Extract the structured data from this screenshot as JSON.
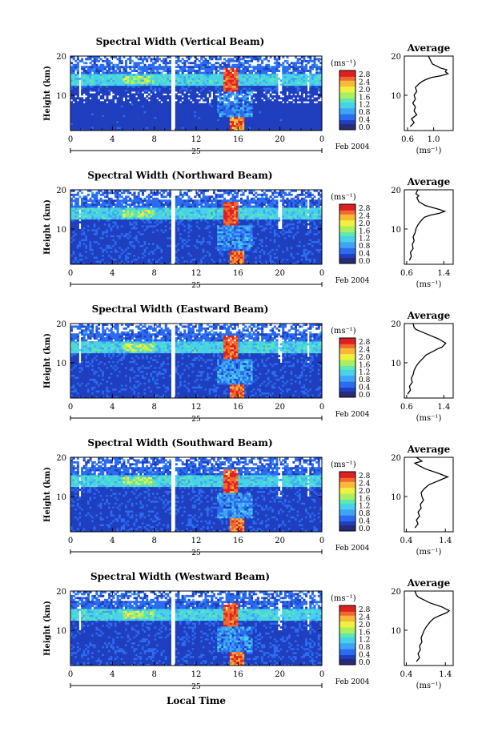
{
  "xlabel": "Local Time",
  "x_ticks": [
    "0",
    "4",
    "8",
    "12",
    "16",
    "20",
    "0"
  ],
  "day_label": "25",
  "month_label": "Feb 2004",
  "ylabel": "Height (km)",
  "y_ticks": [
    "20",
    "10"
  ],
  "colorbar_unit": "(ms⁻¹)",
  "colorbar_ticks": [
    "2.8",
    "2.4",
    "2.0",
    "1.6",
    "1.2",
    "0.8",
    "0.4",
    "0.0"
  ],
  "avg_title": "Average",
  "avg_xlabel": "(ms⁻¹)",
  "colors": {
    "background": "#ffffff",
    "line": "#000000",
    "colormap": [
      "#2a2a7a",
      "#1f3fbf",
      "#2b6cf0",
      "#3fa4f5",
      "#48d2e8",
      "#5fe8b0",
      "#a8f060",
      "#f0f040",
      "#f8b838",
      "#f06a30",
      "#e02020"
    ]
  },
  "chart_data": [
    {
      "type": "heatmap",
      "title": "Spectral Width (Vertical Beam)",
      "xlim": [
        0,
        24
      ],
      "ylim": [
        1,
        20
      ],
      "clim": [
        0.0,
        3.0
      ],
      "avg_profile": {
        "type": "line",
        "title": "Average",
        "x_ticks": [
          "0.6",
          "1.0"
        ],
        "xlim": [
          0.55,
          1.3
        ],
        "y_ticks": [
          "20",
          "10"
        ],
        "ylim": [
          1,
          20
        ],
        "x": [
          0.64,
          0.7,
          0.66,
          0.74,
          0.7,
          0.72,
          0.68,
          0.72,
          0.7,
          0.74,
          0.72,
          0.78,
          0.82,
          0.88,
          0.96,
          1.12,
          1.22,
          1.18,
          1.2,
          1.1,
          0.98,
          0.95,
          0.92
        ],
        "y": [
          2,
          3,
          4,
          5,
          6,
          7,
          8,
          9,
          10,
          11,
          12,
          13,
          13.5,
          14,
          14.5,
          15,
          15.5,
          16,
          16.5,
          17,
          18,
          19,
          20
        ]
      }
    },
    {
      "type": "heatmap",
      "title": "Spectral Width (Northward Beam)",
      "xlim": [
        0,
        24
      ],
      "ylim": [
        1,
        20
      ],
      "clim": [
        0.0,
        3.0
      ],
      "avg_profile": {
        "type": "line",
        "title": "Average",
        "x_ticks": [
          "0.6",
          "1.4"
        ],
        "xlim": [
          0.55,
          1.6
        ],
        "y_ticks": [
          "20",
          "10"
        ],
        "ylim": [
          1,
          20
        ],
        "x": [
          0.66,
          0.7,
          0.68,
          0.74,
          0.72,
          0.76,
          0.74,
          0.78,
          0.8,
          0.84,
          0.9,
          0.98,
          1.1,
          1.3,
          1.42,
          1.3,
          1.0,
          0.86,
          0.82,
          0.86,
          0.8,
          0.84
        ],
        "y": [
          2,
          3,
          4,
          5,
          6,
          7,
          8,
          9,
          10,
          11,
          12,
          13,
          13.5,
          14,
          14.5,
          15,
          16,
          17,
          18,
          18.5,
          19,
          20
        ]
      }
    },
    {
      "type": "heatmap",
      "title": "Spectral Width (Eastward Beam)",
      "xlim": [
        0,
        24
      ],
      "ylim": [
        1,
        20
      ],
      "clim": [
        0.0,
        3.0
      ],
      "avg_profile": {
        "type": "line",
        "title": "Average",
        "x_ticks": [
          "0.6",
          "1.4"
        ],
        "xlim": [
          0.55,
          1.6
        ],
        "y_ticks": [
          "20",
          "10"
        ],
        "ylim": [
          1,
          20
        ],
        "x": [
          0.62,
          0.68,
          0.66,
          0.72,
          0.7,
          0.74,
          0.76,
          0.8,
          0.86,
          0.94,
          1.02,
          1.1,
          1.18,
          1.26,
          1.36,
          1.44,
          1.3,
          1.1,
          0.9,
          0.8,
          0.76,
          0.74
        ],
        "y": [
          2,
          3,
          4,
          5,
          6,
          7,
          8,
          9,
          10,
          11,
          12,
          12.5,
          13,
          13.5,
          14,
          15,
          16,
          17,
          18,
          18.5,
          19,
          20
        ]
      }
    },
    {
      "type": "heatmap",
      "title": "Spectral Width (Southward Beam)",
      "xlim": [
        0,
        24
      ],
      "ylim": [
        1,
        20
      ],
      "clim": [
        0.0,
        3.0
      ],
      "avg_profile": {
        "type": "line",
        "title": "Average",
        "x_ticks": [
          "0.4",
          "1.4"
        ],
        "xlim": [
          0.35,
          1.6
        ],
        "y_ticks": [
          "20",
          "10"
        ],
        "ylim": [
          1,
          20
        ],
        "x": [
          0.62,
          0.7,
          0.66,
          0.74,
          0.7,
          0.78,
          0.76,
          0.84,
          0.8,
          0.78,
          0.86,
          0.98,
          1.1,
          1.22,
          1.34,
          1.46,
          1.2,
          0.9,
          0.7,
          0.62,
          0.8,
          0.66
        ],
        "y": [
          2,
          3,
          4,
          5,
          6,
          7,
          8,
          9,
          10,
          11,
          12,
          13,
          13.5,
          14,
          14.5,
          15,
          16,
          17,
          18,
          18.5,
          19,
          20
        ]
      }
    },
    {
      "type": "heatmap",
      "title": "Spectral Width (Westward Beam)",
      "xlim": [
        0,
        24
      ],
      "ylim": [
        1,
        20
      ],
      "clim": [
        0.0,
        3.0
      ],
      "avg_profile": {
        "type": "line",
        "title": "Average",
        "x_ticks": [
          "0.4",
          "1.4"
        ],
        "xlim": [
          0.35,
          1.6
        ],
        "y_ticks": [
          "20",
          "10"
        ],
        "ylim": [
          1,
          20
        ],
        "x": [
          0.66,
          0.74,
          0.7,
          0.76,
          0.74,
          0.8,
          0.78,
          0.82,
          0.86,
          0.92,
          1.0,
          1.1,
          1.2,
          1.32,
          1.44,
          1.5,
          1.3,
          1.0,
          0.8,
          0.7,
          0.66,
          0.62
        ],
        "y": [
          2,
          3,
          4,
          5,
          6,
          7,
          8,
          9,
          10,
          11,
          12,
          13,
          13.5,
          14,
          14.5,
          15,
          16,
          17,
          18,
          18.5,
          19,
          20
        ]
      }
    }
  ]
}
